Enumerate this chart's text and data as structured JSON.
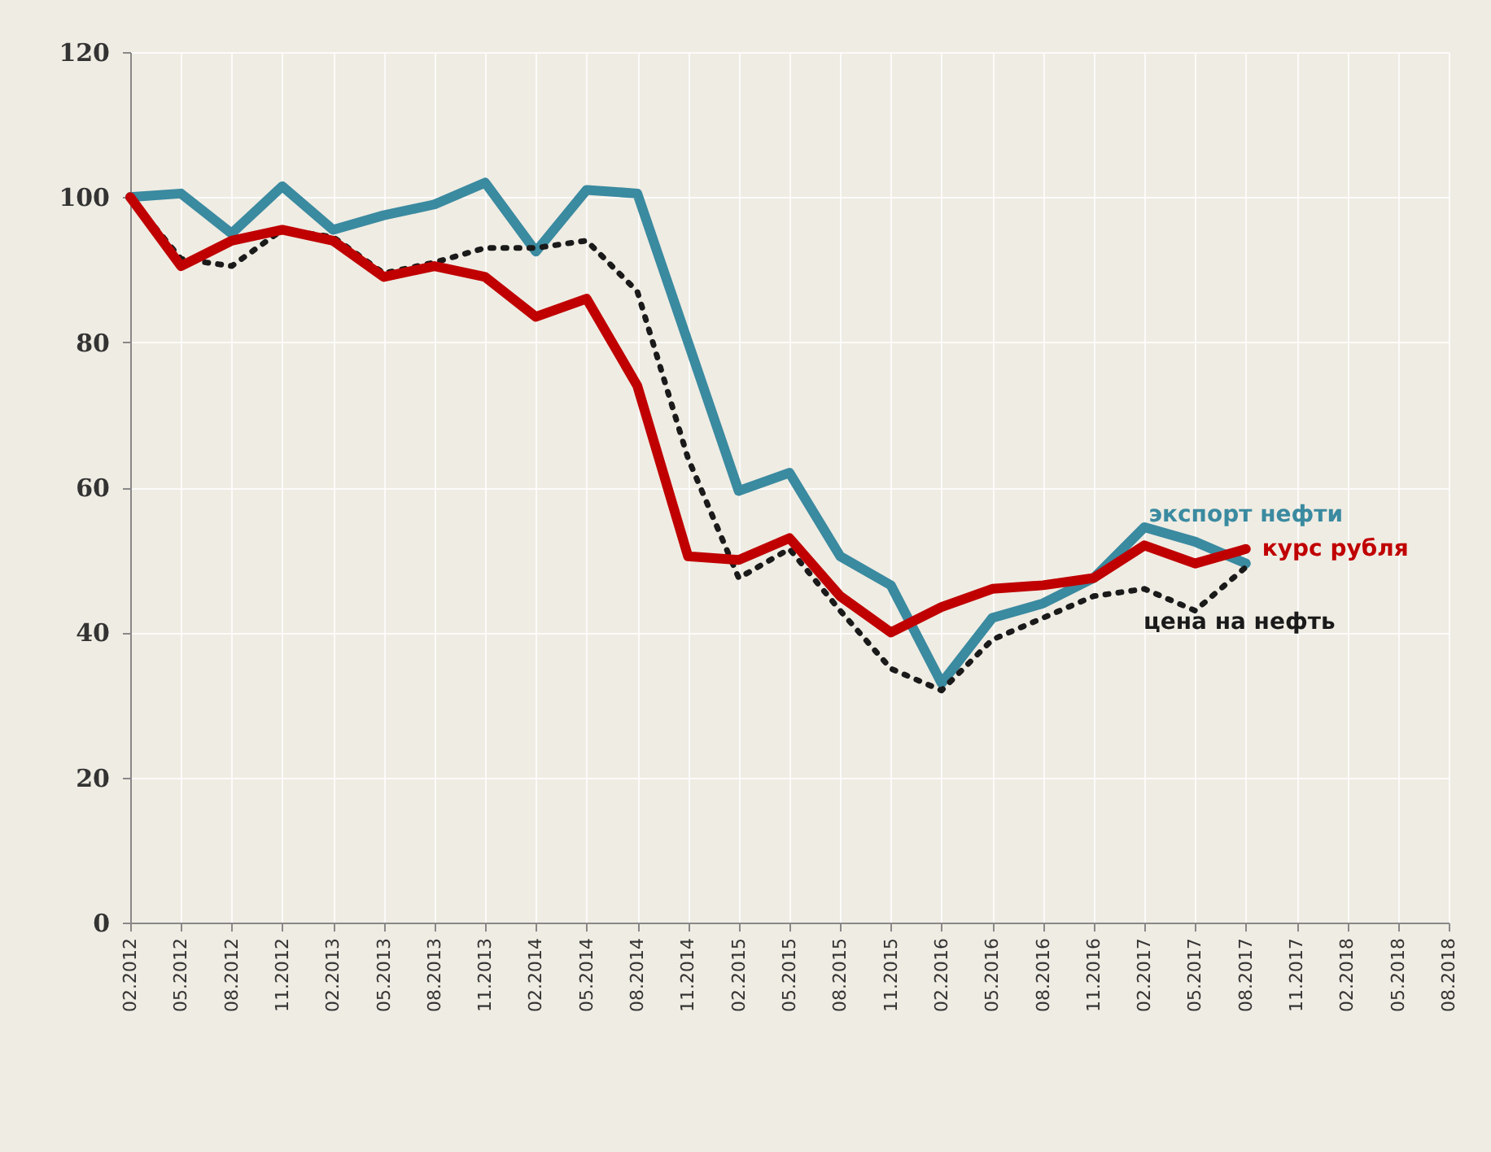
{
  "chart_data": {
    "type": "line",
    "categories": [
      "02.2012",
      "05.2012",
      "08.2012",
      "11.2012",
      "02.2013",
      "05.2013",
      "08.2013",
      "11.2013",
      "02.2014",
      "05.2014",
      "08.2014",
      "11.2014",
      "02.2015",
      "05.2015",
      "08.2015",
      "11.2015",
      "02.2016",
      "05.2016",
      "08.2016",
      "11.2016",
      "02.2017",
      "05.2017",
      "08.2017",
      "11.2017",
      "02.2018",
      "05.2018",
      "08.2018"
    ],
    "series": [
      {
        "name": "экспорт нефти",
        "color": "#3a8aa0",
        "line_style": "solid",
        "values": [
          100,
          100.5,
          95,
          101.5,
          95.5,
          97.5,
          99,
          102,
          92.5,
          101,
          100.5,
          80,
          59.5,
          62,
          50.5,
          46.5,
          33,
          42,
          44,
          47.5,
          54.5,
          52.5,
          49.5,
          null,
          null,
          null,
          null
        ]
      },
      {
        "name": "цена на нефть",
        "color": "#1a1a1a",
        "line_style": "dotted",
        "values": [
          100,
          91.5,
          90.5,
          95.5,
          94.5,
          89.5,
          91,
          93,
          93,
          94,
          87,
          64,
          47.5,
          51.5,
          43,
          35,
          32,
          39,
          42,
          45,
          46,
          43,
          49,
          null,
          null,
          null,
          null
        ]
      },
      {
        "name": "курс рубля",
        "color": "#c00000",
        "line_style": "solid",
        "values": [
          100,
          90.5,
          94,
          95.5,
          94,
          89,
          90.5,
          89,
          83.5,
          86,
          74,
          50.5,
          50,
          53,
          45,
          40,
          43.5,
          46,
          46.5,
          47.5,
          52,
          49.5,
          51.5,
          null,
          null,
          null,
          null
        ]
      }
    ],
    "ylim": [
      0,
      120
    ],
    "yticks": [
      0,
      20,
      40,
      60,
      80,
      100,
      120
    ],
    "grid": true
  }
}
